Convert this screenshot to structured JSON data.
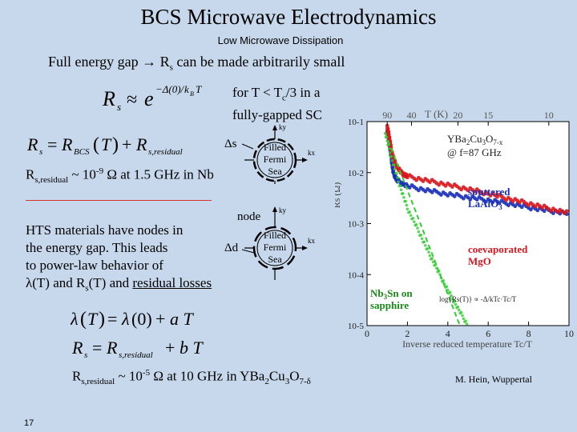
{
  "slide": {
    "title": "BCS Microwave Electrodynamics",
    "subtitle": "Low Microwave Dissipation",
    "heading": "Full energy gap → R",
    "heading_sub": "s",
    "heading_tail": " can be made arbitrarily small",
    "condition_line1": "for T < T",
    "condition_sub": "c",
    "condition_tail": "/3 in a",
    "condition_line2": "fully-gapped SC",
    "residual_nb": "R",
    "residual_nb_sub": "s,residual",
    "residual_nb_mid": " ~ 10",
    "residual_nb_exp": "-9",
    "residual_nb_tail": " Ω at 1.5 GHz in Nb",
    "hts_line1": "HTS materials have nodes in",
    "hts_line2": "the energy gap.  This leads",
    "hts_line3": "to power-law behavior of",
    "hts_line4_a": "λ(T) and R",
    "hts_line4_sub": "s",
    "hts_line4_b": "(T) and ",
    "hts_line4_u": "residual losses",
    "residual_ybco": "R",
    "residual_ybco_sub": "s,residual",
    "residual_ybco_mid": " ~ 10",
    "residual_ybco_exp": "-5",
    "residual_ybco_tail": " Ω at 10 GHz in YBa",
    "residual_ybco_s1": "2",
    "residual_ybco_m1": "Cu",
    "residual_ybco_s2": "3",
    "residual_ybco_m2": "O",
    "residual_ybco_s3": "7-δ",
    "credit": "M. Hein, Wuppertal",
    "page_number": "17"
  },
  "equations": {
    "rs_exp": "R s ≈ e^(−Δ(0)/kB T)",
    "rs_sum": "R s = R BCS(T) + R s,residual",
    "lambda_lin": "λ(T) = λ(0) + a T",
    "rs_lin": "R s = R s,residual + b T"
  },
  "diagram": {
    "delta_s": "Δs",
    "delta_d": "Δd",
    "node": "node",
    "ky": "ky",
    "kx": "kx",
    "fermi_sea": [
      "Filled",
      "Fermi",
      "Sea"
    ]
  },
  "chart_data": {
    "type": "scatter",
    "title": "YBa2Cu3O7-x @ f=87 GHz",
    "xlabel": "Inverse reduced temperature Tc/T",
    "ylabel": "Rs (Ω)",
    "top_axis_label": "T (K)",
    "top_ticks": [
      "90",
      "40",
      "20",
      "15",
      "10"
    ],
    "xlim": [
      0,
      10
    ],
    "ylim_log10": [
      -5,
      -1
    ],
    "x_ticks": [
      "0",
      "2",
      "4",
      "6",
      "8",
      "10"
    ],
    "y_ticks": [
      "10-1",
      "10-2",
      "10-3",
      "10-4",
      "10-5"
    ],
    "annotations": [
      "sputtered LaAlO3",
      "coevaporated MgO",
      "Nb3Sn on sapphire",
      "log{Rs(T)} ∝ -Δ/kTc·Tc/T"
    ],
    "series": [
      {
        "name": "sputtered LaAlO3",
        "color": "#1a2fb8",
        "points": [
          [
            1.0,
            0.07
          ],
          [
            1.1,
            0.04
          ],
          [
            1.2,
            0.02
          ],
          [
            1.3,
            0.01
          ],
          [
            1.5,
            0.007
          ],
          [
            2,
            0.0055
          ],
          [
            3,
            0.0045
          ],
          [
            4,
            0.0038
          ],
          [
            5,
            0.0033
          ],
          [
            6,
            0.0029
          ],
          [
            7,
            0.0025
          ],
          [
            8,
            0.0021
          ],
          [
            9,
            0.0018
          ],
          [
            10,
            0.0016
          ]
        ]
      },
      {
        "name": "coevaporated MgO",
        "color": "#d9161d",
        "points": [
          [
            1.0,
            0.08
          ],
          [
            1.1,
            0.05
          ],
          [
            1.2,
            0.028
          ],
          [
            1.4,
            0.015
          ],
          [
            1.7,
            0.01
          ],
          [
            2,
            0.0085
          ],
          [
            3,
            0.007
          ],
          [
            4,
            0.0058
          ],
          [
            5,
            0.0048
          ],
          [
            6,
            0.0039
          ],
          [
            7,
            0.0031
          ],
          [
            8,
            0.0025
          ],
          [
            9,
            0.002
          ],
          [
            10,
            0.0016
          ]
        ]
      },
      {
        "name": "Nb3Sn on sapphire",
        "color": "#33cc33",
        "points": [
          [
            0.9,
            0.06
          ],
          [
            1.2,
            0.02
          ],
          [
            1.6,
            0.006
          ],
          [
            2,
            0.002
          ],
          [
            2.5,
            0.0008
          ],
          [
            3,
            0.0003
          ],
          [
            3.5,
            0.00012
          ],
          [
            4,
            5e-05
          ],
          [
            4.5,
            2.2e-05
          ],
          [
            5,
            1e-05
          ]
        ]
      }
    ]
  }
}
